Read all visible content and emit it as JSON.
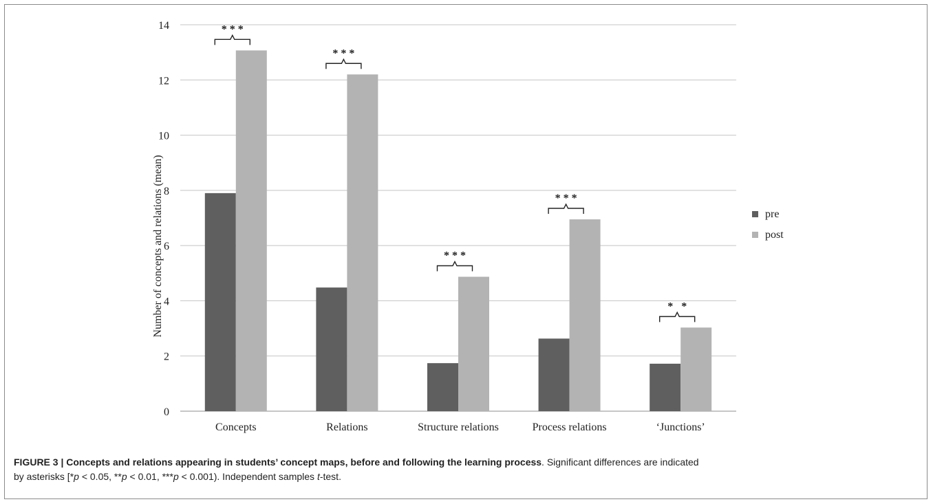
{
  "chart_data": {
    "type": "bar",
    "ylabel": "Number of concepts and relations (mean)",
    "ylim": [
      0,
      14
    ],
    "yticks": [
      0,
      2,
      4,
      6,
      8,
      10,
      12,
      14
    ],
    "grid": true,
    "legend_position": "right",
    "categories": [
      "Concepts",
      "Relations",
      "Structure relations",
      "Process relations",
      "‘Junctions’"
    ],
    "series": [
      {
        "name": "pre",
        "color": "#5f5f5f",
        "values": [
          7.9,
          4.48,
          1.74,
          2.63,
          1.72
        ]
      },
      {
        "name": "post",
        "color": "#b3b3b3",
        "values": [
          13.07,
          12.2,
          4.87,
          6.95,
          3.03
        ]
      }
    ],
    "significance": [
      "* * *",
      "* * *",
      "* * *",
      "* * *",
      "*   *"
    ]
  },
  "caption": {
    "lead": "FIGURE 3 | Concepts and relations appearing in students’ concept maps, before and following the learning process",
    "line1_rest": ". Significant differences are indicated",
    "line2_a": "by asterisks [*",
    "p1": "p",
    "line2_b": " < 0.05, **",
    "p2": "p",
    "line2_c": " < 0.01, ***",
    "p3": "p",
    "line2_d": " < 0.001). Independent samples ",
    "t": "t",
    "line2_e": "-test."
  }
}
